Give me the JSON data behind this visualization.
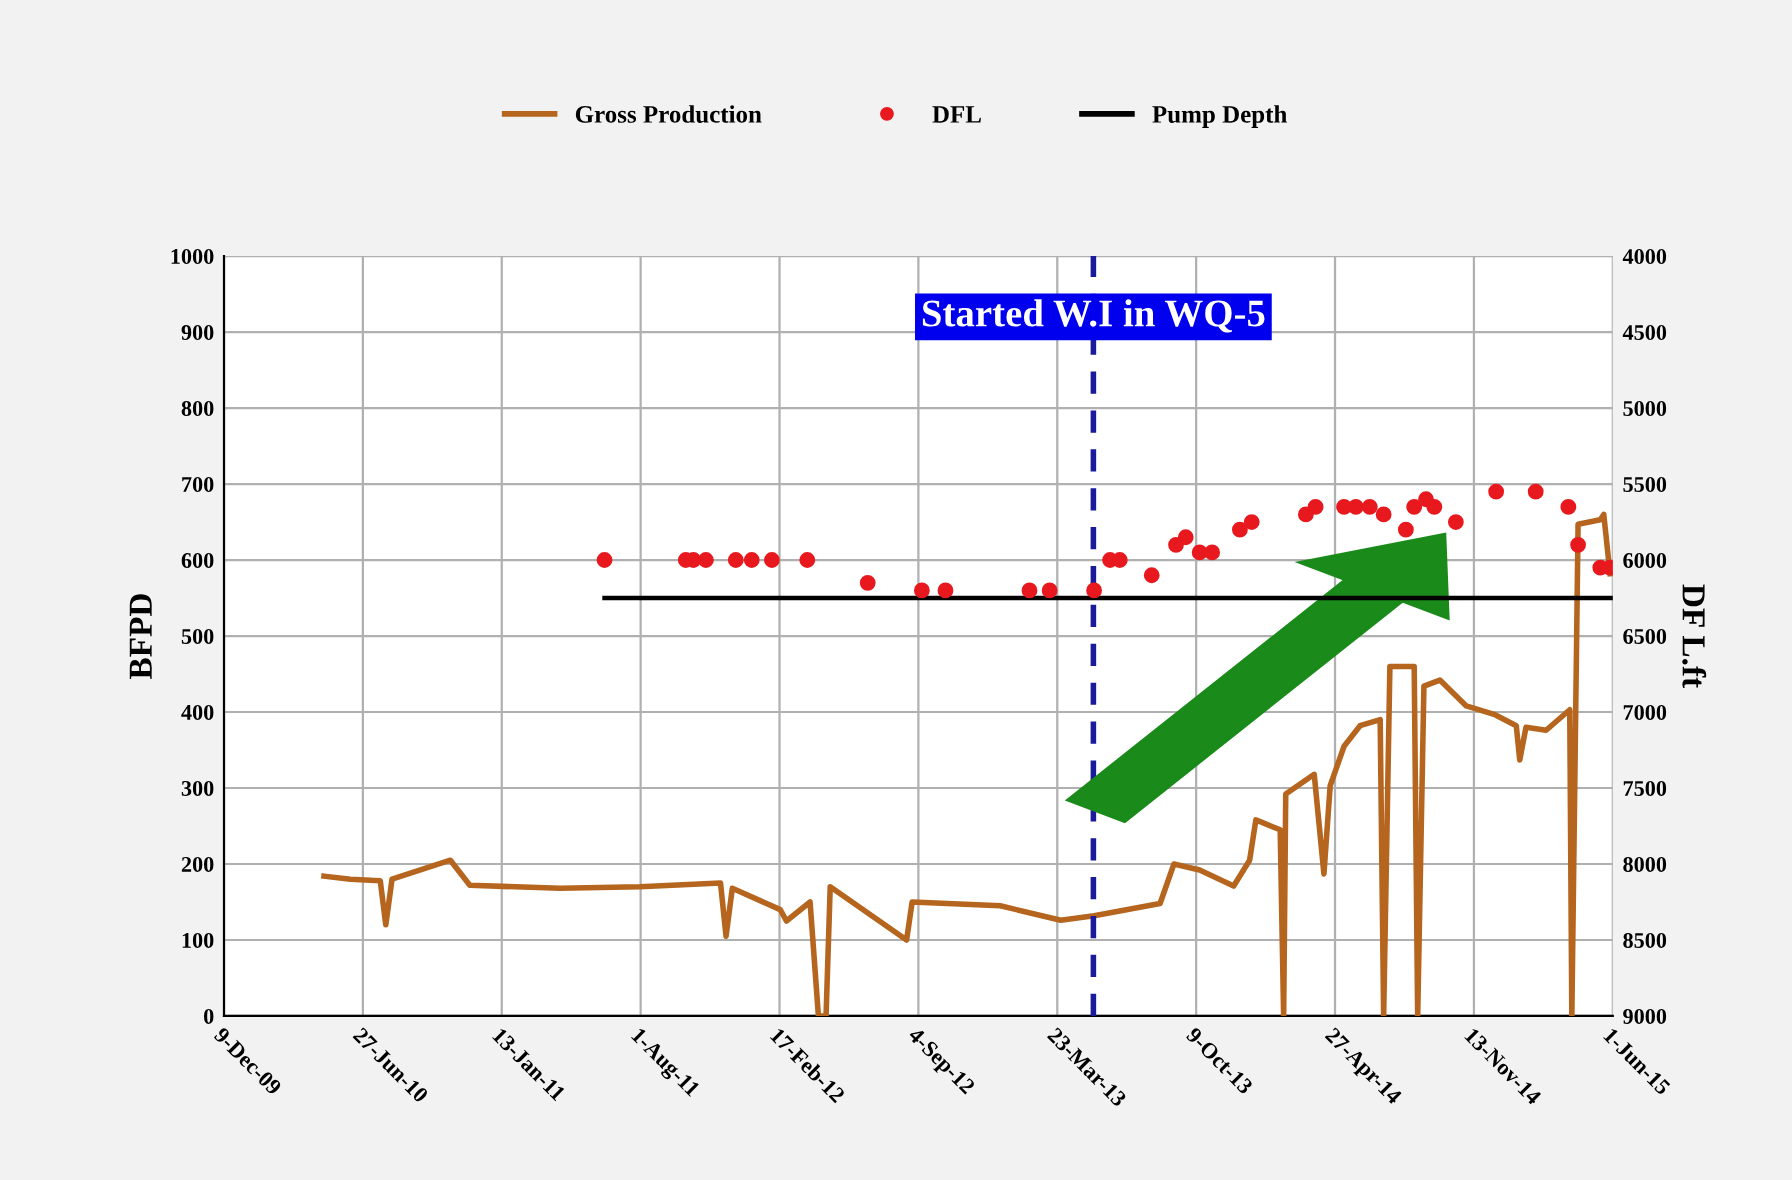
{
  "chart_data": {
    "type": "line",
    "ylabel": "BFPD",
    "y2label": "DF L.ft",
    "xlim": [
      "2009-12-09",
      "2015-06-01"
    ],
    "xticks": [
      {
        "value": "2009-12-09",
        "label": "9-Dec-09"
      },
      {
        "value": "2010-06-27",
        "label": "27-Jun-10"
      },
      {
        "value": "2011-01-13",
        "label": "13-Jan-11"
      },
      {
        "value": "2011-08-01",
        "label": "1-Aug-11"
      },
      {
        "value": "2012-02-17",
        "label": "17-Feb-12"
      },
      {
        "value": "2012-09-04",
        "label": "4-Sep-12"
      },
      {
        "value": "2013-03-23",
        "label": "23-Mar-13"
      },
      {
        "value": "2013-10-09",
        "label": "9-Oct-13"
      },
      {
        "value": "2014-04-27",
        "label": "27-Apr-14"
      },
      {
        "value": "2014-11-13",
        "label": "13-Nov-14"
      },
      {
        "value": "2015-06-01",
        "label": "1-Jun-15"
      }
    ],
    "ylim": [
      0,
      1000
    ],
    "yticks": [
      0,
      100,
      200,
      300,
      400,
      500,
      600,
      700,
      800,
      900,
      1000
    ],
    "y2lim": [
      9000,
      4000
    ],
    "y2ticks": [
      4000,
      4500,
      5000,
      5500,
      6000,
      6500,
      7000,
      7500,
      8000,
      8500,
      9000
    ],
    "grid": true,
    "legend": "top",
    "ref_lines": [
      {
        "axis": "x",
        "value": "2013-05-14",
        "label": "Started W.I in WQ-5",
        "color": "#1a1a9c",
        "line_style": "dashed"
      }
    ],
    "series": [
      {
        "name": "Gross Production",
        "color": "#b5651d",
        "x": [
          "2010-05-02",
          "2010-06-09",
          "2010-07-22",
          "2010-07-30",
          "2010-08-08",
          "2010-10-31",
          "2010-11-28",
          "2011-04-07",
          "2011-07-31",
          "2011-11-24",
          "2011-12-02",
          "2011-12-11",
          "2012-02-18",
          "2012-02-27",
          "2012-04-01",
          "2012-04-13",
          "2012-04-24",
          "2012-04-30",
          "2012-08-18",
          "2012-08-26",
          "2012-12-31",
          "2013-03-28",
          "2013-05-15",
          "2013-08-18",
          "2013-09-07",
          "2013-10-14",
          "2013-12-02",
          "2013-12-25",
          "2014-01-03",
          "2014-02-07",
          "2014-02-12",
          "2014-02-15",
          "2014-03-28",
          "2014-04-11",
          "2014-04-20",
          "2014-05-10",
          "2014-06-02",
          "2014-07-01",
          "2014-07-06",
          "2014-07-15",
          "2014-08-19",
          "2014-08-24",
          "2014-09-02",
          "2014-09-25",
          "2014-11-02",
          "2014-12-12",
          "2015-01-13",
          "2015-01-18",
          "2015-01-27",
          "2015-02-25",
          "2015-03-31",
          "2015-04-03",
          "2015-04-12",
          "2015-05-14",
          "2015-05-19",
          "2015-05-28"
        ],
        "values": [
          184,
          180,
          178,
          120,
          180,
          205,
          172,
          168,
          170,
          175,
          105,
          168,
          140,
          125,
          150,
          0,
          0,
          170,
          100,
          150,
          145,
          126,
          132,
          148,
          200,
          192,
          171,
          205,
          258,
          245,
          0,
          292,
          318,
          187,
          303,
          355,
          382,
          390,
          0,
          460,
          460,
          0,
          434,
          442,
          408,
          397,
          382,
          337,
          380,
          376,
          403,
          0,
          647,
          653,
          660,
          582
        ]
      },
      {
        "name": "DFL",
        "type": "scatter",
        "axis": "y2",
        "marker": "circle",
        "color": "#e8191e",
        "x": [
          "2011-06-10",
          "2011-10-05",
          "2011-10-16",
          "2011-11-03",
          "2011-12-16",
          "2012-01-08",
          "2012-02-06",
          "2012-03-28",
          "2012-06-23",
          "2012-09-09",
          "2012-10-13",
          "2013-02-11",
          "2013-03-12",
          "2013-05-15",
          "2013-06-07",
          "2013-06-21",
          "2013-08-06",
          "2013-09-10",
          "2013-09-24",
          "2013-10-14",
          "2013-11-01",
          "2013-12-11",
          "2013-12-28",
          "2014-03-16",
          "2014-03-30",
          "2014-05-10",
          "2014-05-27",
          "2014-06-16",
          "2014-07-06",
          "2014-08-07",
          "2014-08-19",
          "2014-09-05",
          "2014-09-17",
          "2014-10-18",
          "2014-12-15",
          "2015-02-10",
          "2015-03-29",
          "2015-04-12",
          "2015-05-14",
          "2015-05-28"
        ],
        "values": [
          6000,
          6000,
          6000,
          6000,
          6000,
          6000,
          6000,
          6000,
          6150,
          6200,
          6200,
          6200,
          6200,
          6200,
          6000,
          6000,
          6100,
          5900,
          5850,
          5950,
          5950,
          5800,
          5750,
          5700,
          5650,
          5650,
          5650,
          5650,
          5700,
          5800,
          5650,
          5600,
          5650,
          5750,
          5550,
          5550,
          5650,
          5900,
          6050,
          6050
        ]
      },
      {
        "name": "Pump Depth",
        "type": "line",
        "axis": "y2",
        "color": "#000000",
        "x": [
          "2011-06-10",
          "2015-06-01"
        ],
        "values": [
          6250,
          6250
        ]
      }
    ]
  }
}
